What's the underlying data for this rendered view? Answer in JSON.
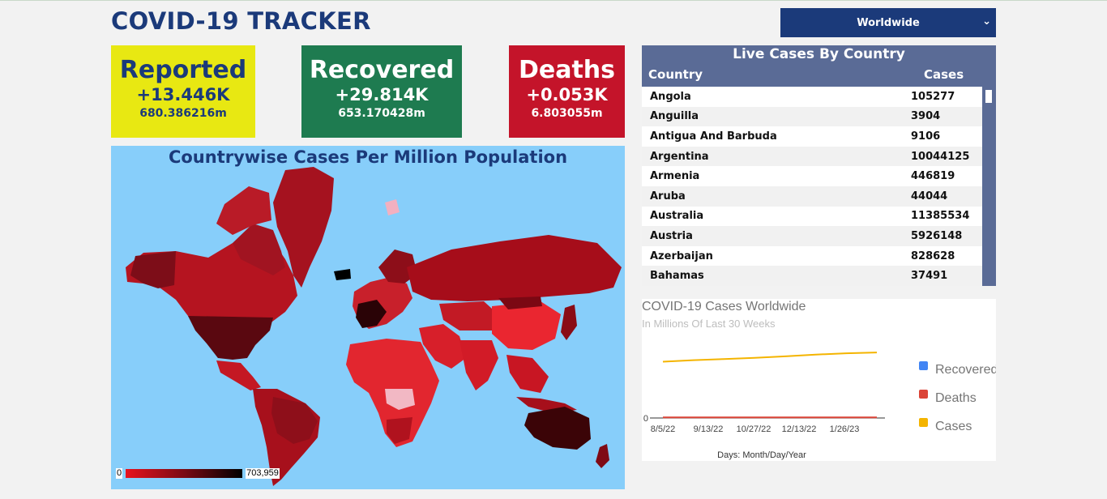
{
  "header": {
    "title": "COVID-19 TRACKER",
    "region_select": {
      "value": "Worldwide"
    }
  },
  "cards": {
    "reported": {
      "label": "Reported",
      "delta": "+13.446K",
      "total": "680.386216m"
    },
    "recovered": {
      "label": "Recovered",
      "delta": "+29.814K",
      "total": "653.170428m"
    },
    "deaths": {
      "label": "Deaths",
      "delta": "+0.053K",
      "total": "6.803055m"
    }
  },
  "colors": {
    "brand": "#1b3a7a",
    "reported": "#e8e812",
    "recovered": "#1e7b50",
    "deaths": "#c4142a",
    "ocean": "#87cefa"
  },
  "map": {
    "title": "Countrywise Cases Per Million Population",
    "legend_min": "0",
    "legend_max": "703,959"
  },
  "table": {
    "title": "Live Cases By Country",
    "columns": [
      "Country",
      "Cases"
    ],
    "rows": [
      [
        "Angola",
        "105277"
      ],
      [
        "Anguilla",
        "3904"
      ],
      [
        "Antigua And Barbuda",
        "9106"
      ],
      [
        "Argentina",
        "10044125"
      ],
      [
        "Armenia",
        "446819"
      ],
      [
        "Aruba",
        "44044"
      ],
      [
        "Australia",
        "11385534"
      ],
      [
        "Austria",
        "5926148"
      ],
      [
        "Azerbaijan",
        "828628"
      ],
      [
        "Bahamas",
        "37491"
      ]
    ]
  },
  "line_chart": {
    "title": "COVID-19 Cases Worldwide",
    "subtitle": "In Millions Of Last 30 Weeks",
    "xlabel": "Days: Month/Day/Year"
  },
  "chart_data": {
    "type": "line",
    "title": "COVID-19 Cases Worldwide",
    "subtitle": "In Millions Of Last 30 Weeks",
    "xlabel": "Days: Month/Day/Year",
    "ylabel": "",
    "x_ticks": [
      "8/5/22",
      "9/13/22",
      "10/27/22",
      "12/13/22",
      "1/26/23"
    ],
    "y_ticks": [
      "0"
    ],
    "legend_position": "right",
    "series": [
      {
        "name": "Recovered",
        "color": "#4285f4",
        "values": []
      },
      {
        "name": "Deaths",
        "color": "#db4437",
        "values": [
          6.4,
          6.5,
          6.55,
          6.6,
          6.65,
          6.7,
          6.75,
          6.8
        ]
      },
      {
        "name": "Cases",
        "color": "#f4b400",
        "values": [
          585,
          600,
          612,
          625,
          640,
          658,
          672,
          680
        ]
      }
    ],
    "x_index_range": [
      0,
      7
    ],
    "y_range": [
      0,
      900
    ]
  }
}
